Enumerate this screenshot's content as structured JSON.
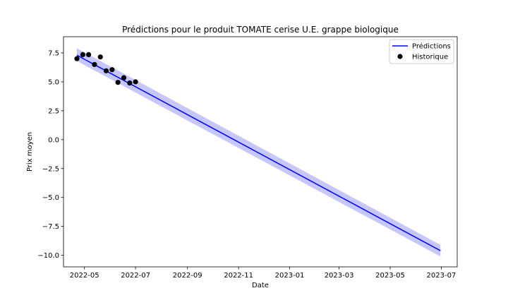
{
  "chart_data": {
    "type": "line",
    "title": "Prédictions pour le produit TOMATE cerise U.E. grappe biologique",
    "xlabel": "Date",
    "ylabel": "Prix moyen",
    "xlim": [
      "2022-04-06",
      "2023-07-20"
    ],
    "ylim": [
      -11.0,
      8.9
    ],
    "x_ticks": [
      "2022-05-01",
      "2022-07-01",
      "2022-09-01",
      "2022-11-01",
      "2023-01-01",
      "2023-03-01",
      "2023-05-01",
      "2023-07-01"
    ],
    "x_tick_labels": [
      "2022-05",
      "2022-07",
      "2022-09",
      "2022-11",
      "2023-01",
      "2023-03",
      "2023-05",
      "2023-07"
    ],
    "y_ticks": [
      7.5,
      5.0,
      2.5,
      0.0,
      -2.5,
      -5.0,
      -7.5,
      -10.0
    ],
    "y_tick_labels": [
      "7.5",
      "5.0",
      "2.5",
      "0.0",
      "−2.5",
      "−5.0",
      "−7.5",
      "−10.0"
    ],
    "grid": false,
    "legend_position": "top-right",
    "legend": [
      {
        "label": "Prédictions",
        "kind": "line",
        "color": "#0000ff"
      },
      {
        "label": "Historique",
        "kind": "marker",
        "color": "#000000"
      }
    ],
    "series": [
      {
        "name": "Prédictions",
        "kind": "line",
        "color": "#0000ff",
        "x": [
          "2022-04-22",
          "2023-06-30"
        ],
        "y": [
          7.3,
          -9.6
        ],
        "band_color": "#bdbdff",
        "band_lower": [
          6.8,
          -10.1
        ],
        "band_upper": [
          7.9,
          -9.1
        ]
      },
      {
        "name": "Historique",
        "kind": "scatter",
        "color": "#000000",
        "x": [
          "2022-04-22",
          "2022-04-29",
          "2022-05-06",
          "2022-05-13",
          "2022-05-20",
          "2022-05-27",
          "2022-06-03",
          "2022-06-10",
          "2022-06-17",
          "2022-06-24",
          "2022-07-01"
        ],
        "y": [
          7.0,
          7.35,
          7.35,
          6.5,
          7.15,
          5.95,
          6.05,
          4.95,
          5.35,
          4.9,
          5.0
        ]
      }
    ]
  }
}
